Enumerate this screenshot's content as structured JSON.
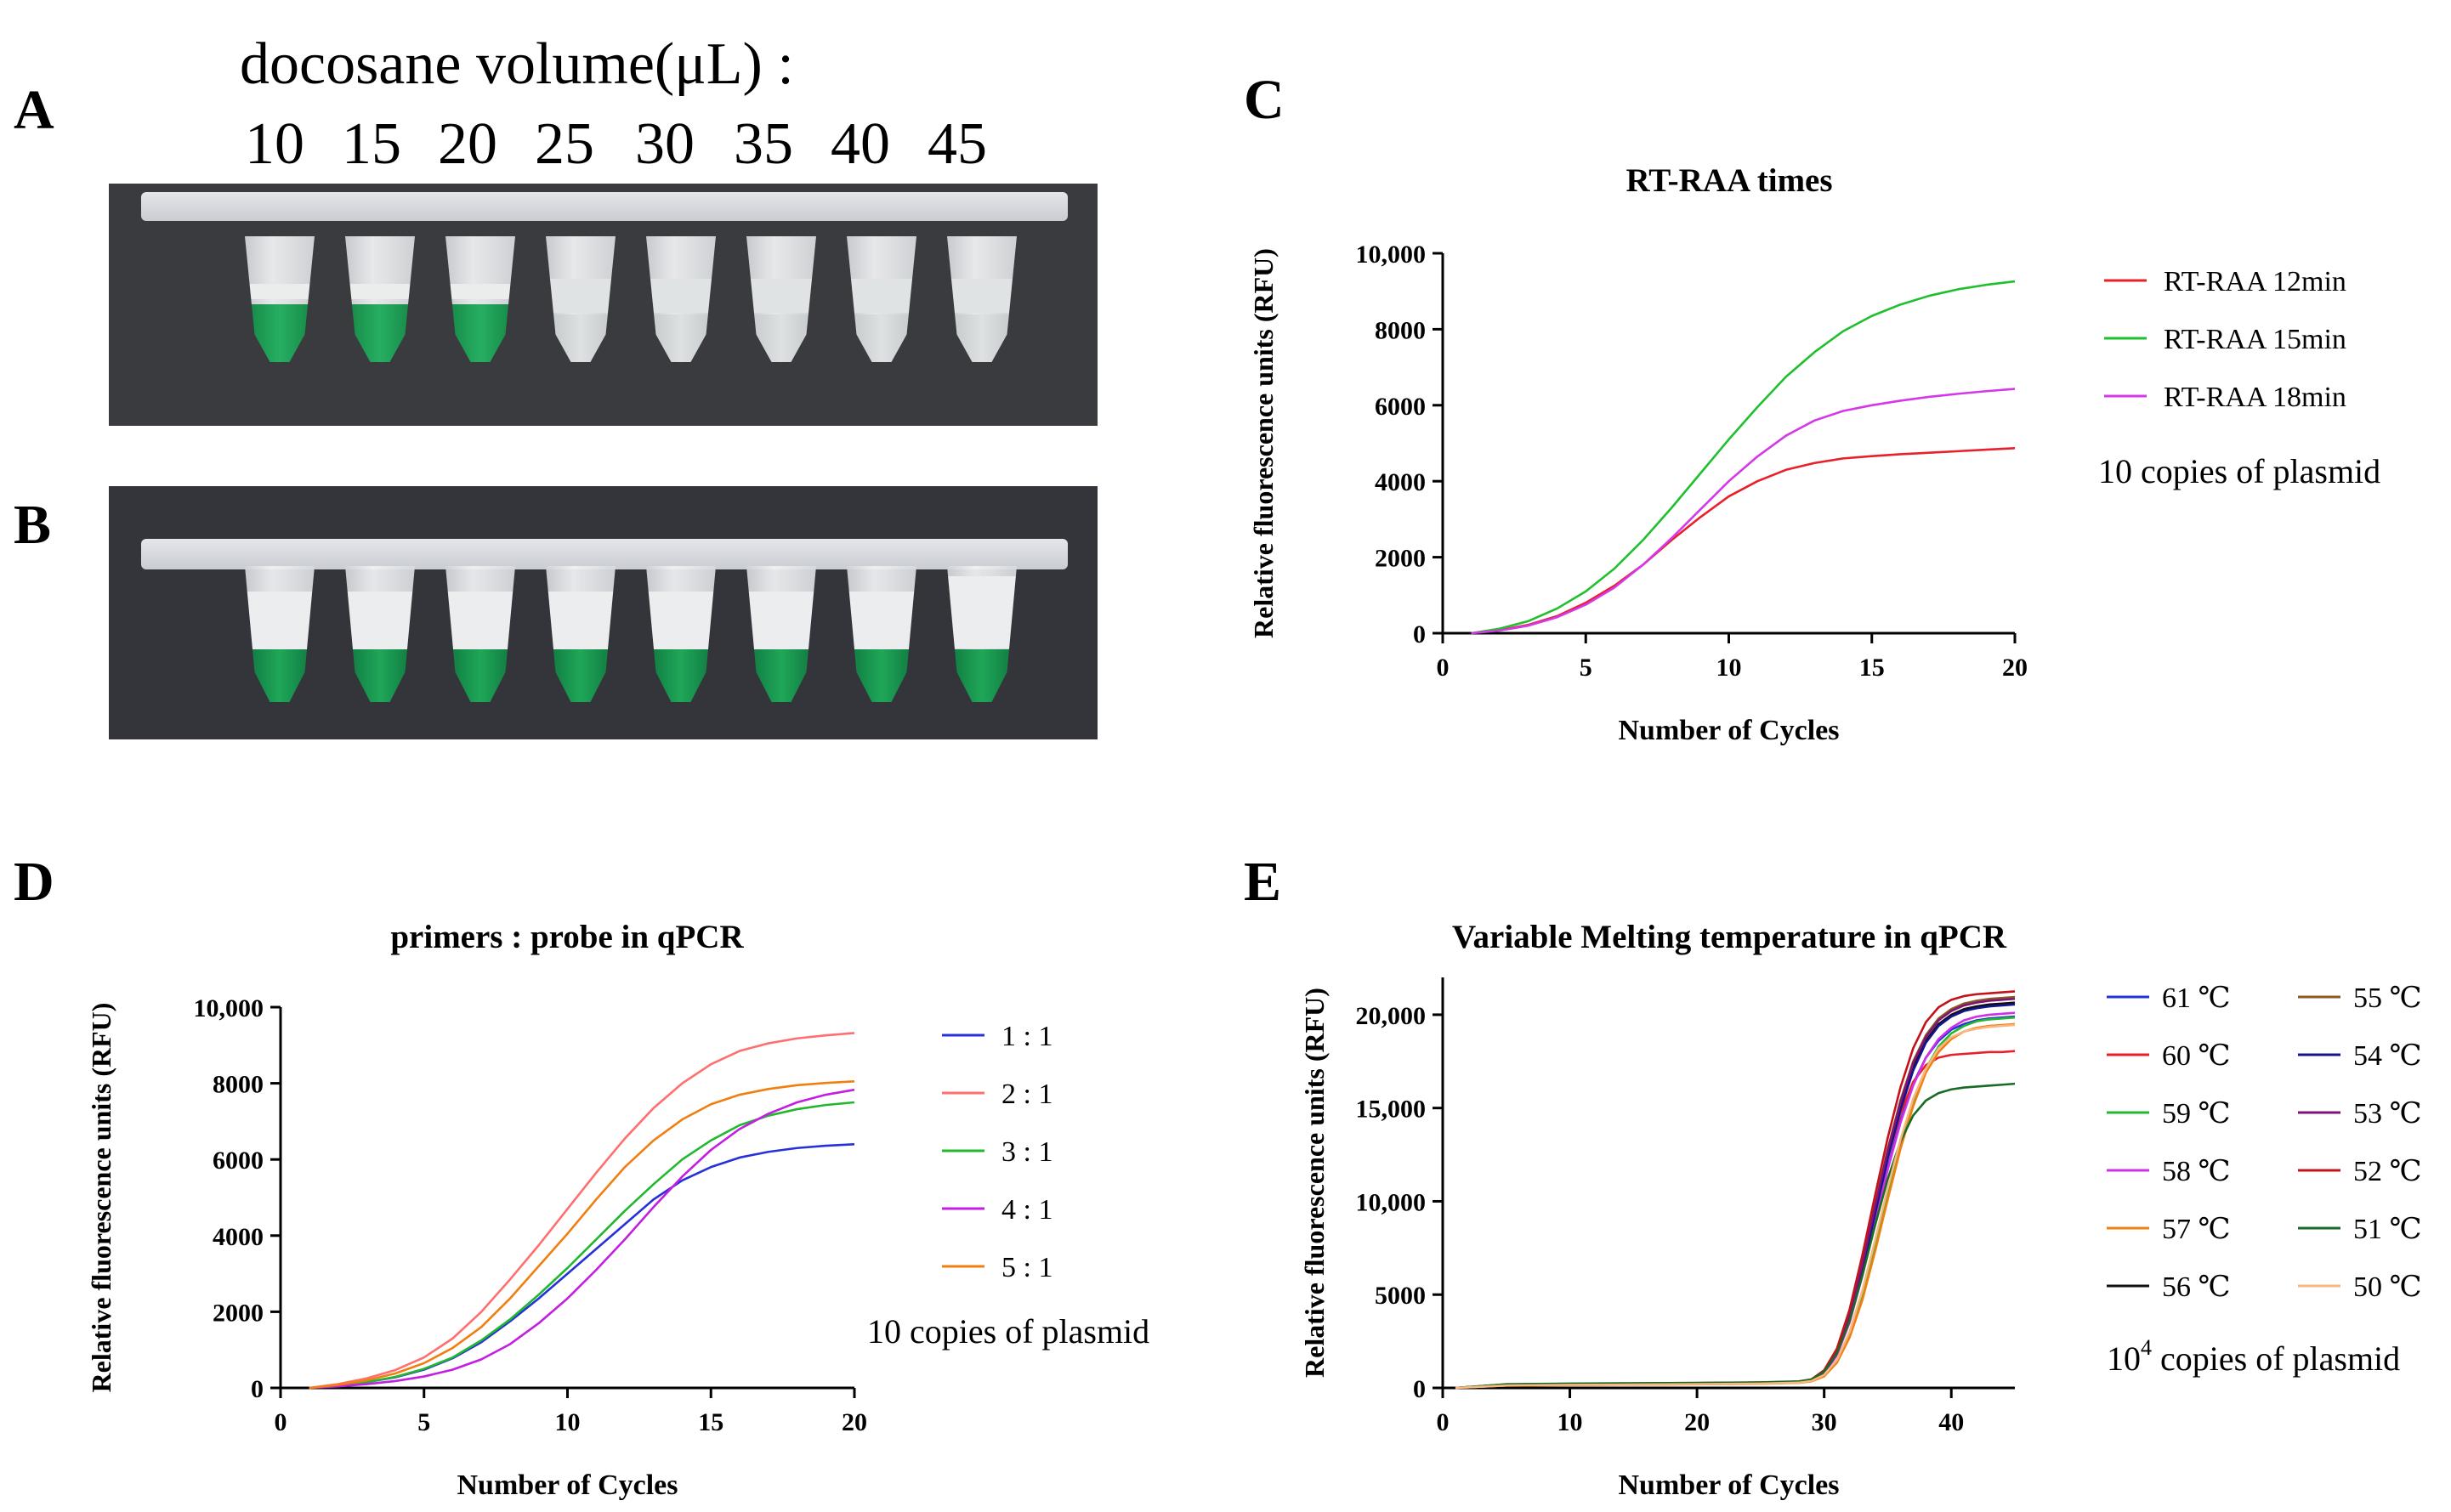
{
  "panels": {
    "A": "A",
    "B": "B",
    "C": "C",
    "D": "D",
    "E": "E"
  },
  "photo_caption": "docosane volume(μL) :",
  "volumes": [
    "10",
    "15",
    "20",
    "25",
    "30",
    "35",
    "40",
    "45"
  ],
  "photo_a_tubes": [
    {
      "liquid_color": "#1f9e55",
      "green": true
    },
    {
      "liquid_color": "#1f9e55",
      "green": true
    },
    {
      "liquid_color": "#2a9e5d",
      "green": true
    },
    {
      "liquid_color": "#dfe4e6",
      "green": false
    },
    {
      "liquid_color": "#dfe4e6",
      "green": false
    },
    {
      "liquid_color": "#dfe4e6",
      "green": false
    },
    {
      "liquid_color": "#dfe4e6",
      "green": false
    },
    {
      "liquid_color": "#dfe4e6",
      "green": false
    }
  ],
  "chart_data": [
    {
      "id": "C",
      "type": "line",
      "title": "RT-RAA times",
      "xlabel": "Number of Cycles",
      "ylabel": "Relative fluorescence units (RFU)",
      "xlim": [
        0,
        20
      ],
      "ylim": [
        0,
        10000
      ],
      "xticks": [
        "0",
        "5",
        "10",
        "15",
        "20"
      ],
      "yticks": [
        "0",
        "2000",
        "4000",
        "6000",
        "8000",
        "10,000"
      ],
      "x": [
        1,
        2,
        3,
        4,
        5,
        6,
        7,
        8,
        9,
        10,
        11,
        12,
        13,
        14,
        15,
        16,
        17,
        18,
        19,
        20
      ],
      "series": [
        {
          "name": "RT-RAA 12min",
          "color": "#e8202a",
          "values": [
            0,
            80,
            220,
            450,
            800,
            1250,
            1800,
            2450,
            3050,
            3600,
            4000,
            4300,
            4480,
            4600,
            4660,
            4710,
            4750,
            4790,
            4830,
            4870
          ]
        },
        {
          "name": "RT-RAA 15min",
          "color": "#1fbf2e",
          "values": [
            0,
            120,
            320,
            650,
            1100,
            1700,
            2450,
            3300,
            4200,
            5100,
            5950,
            6750,
            7400,
            7950,
            8350,
            8650,
            8880,
            9050,
            9170,
            9260
          ]
        },
        {
          "name": "RT-RAA 18min",
          "color": "#d438e8",
          "values": [
            0,
            70,
            200,
            420,
            750,
            1200,
            1800,
            2500,
            3250,
            4000,
            4650,
            5200,
            5600,
            5850,
            6000,
            6120,
            6220,
            6300,
            6370,
            6430
          ]
        }
      ],
      "note": "10 copies of plasmid"
    },
    {
      "id": "D",
      "type": "line",
      "title": "primers :  probe in qPCR",
      "xlabel": "Number of Cycles",
      "ylabel": "Relative fluorescence units (RFU)",
      "xlim": [
        0,
        20
      ],
      "ylim": [
        0,
        10000
      ],
      "xticks": [
        "0",
        "5",
        "10",
        "15",
        "20"
      ],
      "yticks": [
        "0",
        "2000",
        "4000",
        "6000",
        "8000",
        "10,000"
      ],
      "x": [
        1,
        2,
        3,
        4,
        5,
        6,
        7,
        8,
        9,
        10,
        11,
        12,
        13,
        14,
        15,
        16,
        17,
        18,
        19,
        20
      ],
      "series": [
        {
          "name": "1 : 1",
          "color": "#2631d9",
          "values": [
            0,
            60,
            150,
            280,
            480,
            780,
            1200,
            1750,
            2350,
            3000,
            3650,
            4300,
            4950,
            5450,
            5800,
            6050,
            6200,
            6300,
            6360,
            6400
          ]
        },
        {
          "name": "2 : 1",
          "color": "#ff6f6f",
          "values": [
            0,
            100,
            250,
            470,
            800,
            1300,
            2000,
            2850,
            3750,
            4700,
            5650,
            6550,
            7350,
            8000,
            8500,
            8850,
            9050,
            9180,
            9260,
            9320
          ]
        },
        {
          "name": "3 : 1",
          "color": "#22b82e",
          "values": [
            0,
            60,
            150,
            290,
            500,
            800,
            1250,
            1800,
            2450,
            3150,
            3900,
            4650,
            5350,
            6000,
            6500,
            6900,
            7150,
            7320,
            7430,
            7500
          ]
        },
        {
          "name": "4 : 1",
          "color": "#c21fe0",
          "values": [
            0,
            40,
            100,
            180,
            300,
            480,
            750,
            1150,
            1700,
            2350,
            3100,
            3900,
            4750,
            5550,
            6250,
            6800,
            7200,
            7500,
            7700,
            7830
          ]
        },
        {
          "name": "5 : 1",
          "color": "#f07f12",
          "values": [
            0,
            80,
            200,
            380,
            650,
            1050,
            1600,
            2350,
            3200,
            4050,
            4950,
            5800,
            6500,
            7050,
            7450,
            7700,
            7850,
            7950,
            8010,
            8050
          ]
        }
      ],
      "note": "10 copies of plasmid"
    },
    {
      "id": "E",
      "type": "line",
      "title": "Variable Melting temperature in qPCR",
      "xlabel": "Number of Cycles",
      "ylabel": "Relative fluorescence units (RFU)",
      "xlim": [
        0,
        45
      ],
      "ylim": [
        0,
        22000
      ],
      "xticks": [
        "0",
        "10",
        "20",
        "30",
        "40"
      ],
      "yticks": [
        "0",
        "5000",
        "10,000",
        "15,000",
        "20,000"
      ],
      "x": [
        1,
        5,
        10,
        15,
        20,
        25,
        28,
        29,
        30,
        31,
        32,
        33,
        34,
        35,
        36,
        37,
        38,
        39,
        40,
        41,
        42,
        43,
        44,
        45
      ],
      "series": [
        {
          "name": "61 ℃",
          "color": "#2233dd",
          "values": [
            0,
            150,
            180,
            200,
            220,
            250,
            300,
            400,
            800,
            1800,
            3600,
            6200,
            9000,
            11800,
            14300,
            16300,
            17700,
            18600,
            19200,
            19500,
            19700,
            19800,
            19850,
            19900
          ]
        },
        {
          "name": "60 ℃",
          "color": "#e8202a",
          "values": [
            0,
            180,
            200,
            230,
            260,
            290,
            340,
            450,
            900,
            2000,
            3900,
            6600,
            9500,
            12300,
            14700,
            16400,
            17300,
            17700,
            17850,
            17900,
            17950,
            18000,
            18000,
            18050
          ]
        },
        {
          "name": "59 ℃",
          "color": "#22b82e",
          "values": [
            0,
            130,
            160,
            180,
            200,
            230,
            280,
            360,
            650,
            1400,
            2800,
            4900,
            7500,
            10300,
            13000,
            15300,
            17100,
            18300,
            19000,
            19400,
            19650,
            19750,
            19800,
            19850
          ]
        },
        {
          "name": "58 ℃",
          "color": "#d030e6",
          "values": [
            0,
            140,
            170,
            190,
            210,
            240,
            290,
            390,
            780,
            1750,
            3500,
            6000,
            8900,
            11700,
            14200,
            16200,
            17700,
            18700,
            19300,
            19700,
            19900,
            20000,
            20050,
            20100
          ]
        },
        {
          "name": "57 ℃",
          "color": "#f07f12",
          "values": [
            0,
            120,
            150,
            170,
            190,
            220,
            270,
            350,
            620,
            1350,
            2700,
            4700,
            7300,
            10100,
            12800,
            15100,
            16900,
            18000,
            18700,
            19100,
            19300,
            19400,
            19450,
            19500
          ]
        },
        {
          "name": "56 ℃",
          "color": "#111111",
          "values": [
            0,
            160,
            190,
            210,
            230,
            260,
            310,
            420,
            850,
            1900,
            3800,
            6500,
            9500,
            12500,
            15100,
            17200,
            18600,
            19500,
            20000,
            20300,
            20450,
            20550,
            20600,
            20650
          ]
        },
        {
          "name": "55 ℃",
          "color": "#8a5a1c",
          "values": [
            0,
            170,
            200,
            220,
            240,
            270,
            320,
            430,
            880,
            1950,
            3900,
            6700,
            9800,
            12800,
            15400,
            17500,
            18900,
            19800,
            20300,
            20600,
            20750,
            20850,
            20900,
            20950
          ]
        },
        {
          "name": "54 ℃",
          "color": "#14148c",
          "values": [
            0,
            150,
            180,
            200,
            220,
            250,
            300,
            410,
            830,
            1850,
            3700,
            6300,
            9300,
            12300,
            14900,
            17000,
            18500,
            19400,
            19900,
            20200,
            20350,
            20450,
            20500,
            20550
          ]
        },
        {
          "name": "53 ℃",
          "color": "#80127a",
          "values": [
            0,
            160,
            190,
            210,
            230,
            260,
            310,
            420,
            860,
            1900,
            3850,
            6600,
            9700,
            12700,
            15300,
            17400,
            18800,
            19700,
            20200,
            20500,
            20650,
            20750,
            20800,
            20850
          ]
        },
        {
          "name": "52 ℃",
          "color": "#c4121a",
          "values": [
            0,
            190,
            220,
            240,
            260,
            290,
            340,
            460,
            950,
            2100,
            4200,
            7100,
            10300,
            13400,
            16100,
            18200,
            19600,
            20400,
            20800,
            21000,
            21100,
            21150,
            21200,
            21250
          ]
        },
        {
          "name": "51 ℃",
          "color": "#176b24",
          "values": [
            0,
            200,
            230,
            250,
            270,
            300,
            350,
            450,
            870,
            1850,
            3600,
            6000,
            8700,
            11200,
            13200,
            14600,
            15400,
            15800,
            16000,
            16100,
            16150,
            16200,
            16250,
            16300
          ]
        },
        {
          "name": "50 ℃",
          "color": "#f6b880",
          "values": [
            0,
            130,
            160,
            180,
            200,
            230,
            280,
            370,
            700,
            1500,
            3000,
            5200,
            7900,
            10700,
            13300,
            15500,
            17100,
            18200,
            18800,
            19100,
            19250,
            19350,
            19400,
            19450
          ]
        }
      ],
      "note": "10",
      "note_sup": "4",
      "note_rest": " copies of plasmid"
    }
  ]
}
